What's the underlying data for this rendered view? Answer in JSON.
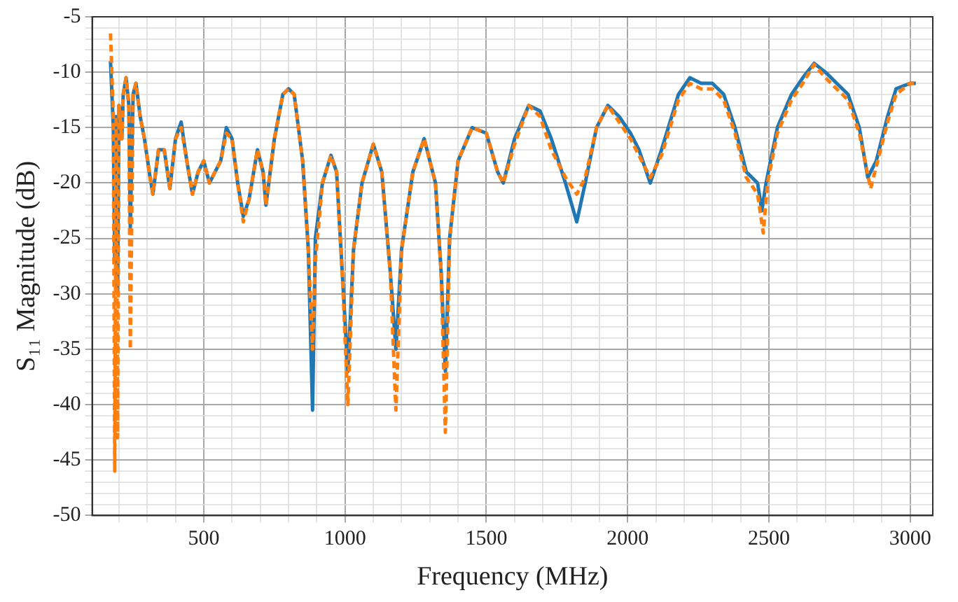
{
  "chart_data": {
    "type": "line",
    "xlabel": "Frequency (MHz)",
    "ylabel": "S₁₁ Magnitude (dB)",
    "xlim": [
      105,
      3080
    ],
    "ylim": [
      -50,
      -5
    ],
    "xticks": [
      {
        "value": 200,
        "label": null
      },
      {
        "value": 300,
        "label": null
      },
      {
        "value": 400,
        "label": null
      },
      500,
      {
        "value": 600,
        "label": null
      },
      {
        "value": 700,
        "label": null
      },
      {
        "value": 800,
        "label": null
      },
      {
        "value": 900,
        "label": null
      },
      1000,
      {
        "value": 1100,
        "label": null
      },
      {
        "value": 1200,
        "label": null
      },
      {
        "value": 1300,
        "label": null
      },
      {
        "value": 1400,
        "label": null
      },
      1500,
      {
        "value": 1600,
        "label": null
      },
      {
        "value": 1700,
        "label": null
      },
      {
        "value": 1800,
        "label": null
      },
      {
        "value": 1900,
        "label": null
      },
      2000,
      {
        "value": 2100,
        "label": null
      },
      {
        "value": 2200,
        "label": null
      },
      {
        "value": 2300,
        "label": null
      },
      {
        "value": 2400,
        "label": null
      },
      2500,
      {
        "value": 2600,
        "label": null
      },
      {
        "value": 2700,
        "label": null
      },
      {
        "value": 2800,
        "label": null
      },
      {
        "value": 2900,
        "label": null
      },
      3000
    ],
    "yticks": [
      -50,
      {
        "value": -49,
        "label": null
      },
      {
        "value": -48,
        "label": null
      },
      {
        "value": -47,
        "label": null
      },
      {
        "value": -46,
        "label": null
      },
      -45,
      {
        "value": -44,
        "label": null
      },
      {
        "value": -43,
        "label": null
      },
      {
        "value": -42,
        "label": null
      },
      {
        "value": -41,
        "label": null
      },
      -40,
      {
        "value": -39,
        "label": null
      },
      {
        "value": -38,
        "label": null
      },
      {
        "value": -37,
        "label": null
      },
      {
        "value": -36,
        "label": null
      },
      -35,
      {
        "value": -34,
        "label": null
      },
      {
        "value": -33,
        "label": null
      },
      {
        "value": -32,
        "label": null
      },
      {
        "value": -31,
        "label": null
      },
      -30,
      {
        "value": -29,
        "label": null
      },
      {
        "value": -28,
        "label": null
      },
      {
        "value": -27,
        "label": null
      },
      {
        "value": -26,
        "label": null
      },
      -25,
      {
        "value": -24,
        "label": null
      },
      {
        "value": -23,
        "label": null
      },
      {
        "value": -22,
        "label": null
      },
      {
        "value": -21,
        "label": null
      },
      -20,
      {
        "value": -19,
        "label": null
      },
      {
        "value": -18,
        "label": null
      },
      {
        "value": -17,
        "label": null
      },
      {
        "value": -16,
        "label": null
      },
      -15,
      {
        "value": -14,
        "label": null
      },
      {
        "value": -13,
        "label": null
      },
      {
        "value": -12,
        "label": null
      },
      {
        "value": -11,
        "label": null
      },
      -10,
      {
        "value": -9,
        "label": null
      },
      {
        "value": -8,
        "label": null
      },
      {
        "value": -7,
        "label": null
      },
      {
        "value": -6,
        "label": null
      },
      -5
    ],
    "grid": true,
    "marker": "none",
    "series": [
      {
        "color": "#1f77b4",
        "line_style": "solid",
        "x": [
          170,
          180,
          185,
          190,
          195,
          200,
          210,
          215,
          225,
          235,
          240,
          250,
          260,
          275,
          290,
          310,
          320,
          340,
          360,
          380,
          400,
          420,
          440,
          460,
          480,
          500,
          520,
          540,
          560,
          580,
          600,
          620,
          640,
          660,
          690,
          710,
          720,
          750,
          780,
          800,
          820,
          850,
          870,
          885,
          895,
          920,
          950,
          970,
          990,
          1010,
          1030,
          1060,
          1100,
          1130,
          1160,
          1180,
          1200,
          1240,
          1280,
          1320,
          1340,
          1355,
          1370,
          1400,
          1450,
          1500,
          1540,
          1560,
          1600,
          1650,
          1690,
          1730,
          1780,
          1820,
          1850,
          1890,
          1930,
          1970,
          2010,
          2040,
          2080,
          2120,
          2180,
          2220,
          2260,
          2300,
          2340,
          2380,
          2420,
          2460,
          2475,
          2490,
          2530,
          2580,
          2620,
          2660,
          2700,
          2740,
          2780,
          2820,
          2850,
          2880,
          2920,
          2950,
          3000,
          3020
        ],
        "values": [
          -9,
          -15,
          -27,
          -14,
          -30,
          -13,
          -16,
          -12,
          -10.5,
          -13,
          -24,
          -12,
          -11,
          -14,
          -16,
          -19.5,
          -21,
          -17,
          -17,
          -20.5,
          -16,
          -14.5,
          -18,
          -21,
          -19,
          -18,
          -20,
          -19,
          -18,
          -15,
          -16,
          -20,
          -23,
          -21.5,
          -17,
          -19,
          -22,
          -16,
          -12,
          -11.5,
          -12,
          -18,
          -26,
          -40.5,
          -25,
          -20,
          -17.5,
          -19,
          -28,
          -37,
          -26,
          -20,
          -16.5,
          -19,
          -28,
          -35,
          -26,
          -19,
          -16,
          -20,
          -28,
          -37,
          -25,
          -18,
          -15,
          -15.5,
          -19,
          -20,
          -16,
          -13,
          -13.5,
          -16,
          -20,
          -23.5,
          -20,
          -15,
          -13,
          -14,
          -15.5,
          -17,
          -20,
          -17,
          -12,
          -10.5,
          -11,
          -11,
          -12,
          -15,
          -19,
          -20,
          -22.5,
          -20,
          -15,
          -12,
          -10.5,
          -9.2,
          -10,
          -11,
          -12,
          -15,
          -19.5,
          -18,
          -14,
          -11.5,
          -11,
          -11
        ]
      },
      {
        "color": "#ff7f0e",
        "line_style": "dashed",
        "x": [
          170,
          180,
          185,
          190,
          195,
          200,
          210,
          215,
          225,
          235,
          240,
          250,
          260,
          275,
          290,
          310,
          320,
          340,
          360,
          380,
          400,
          420,
          440,
          460,
          480,
          500,
          520,
          540,
          560,
          580,
          600,
          620,
          640,
          660,
          690,
          710,
          720,
          750,
          780,
          800,
          820,
          850,
          870,
          885,
          895,
          920,
          950,
          970,
          990,
          1010,
          1030,
          1060,
          1100,
          1130,
          1160,
          1180,
          1200,
          1240,
          1280,
          1320,
          1340,
          1355,
          1370,
          1400,
          1450,
          1500,
          1540,
          1560,
          1600,
          1650,
          1690,
          1730,
          1780,
          1820,
          1850,
          1890,
          1930,
          1970,
          2010,
          2040,
          2080,
          2120,
          2180,
          2220,
          2260,
          2300,
          2340,
          2380,
          2420,
          2460,
          2480,
          2495,
          2530,
          2580,
          2620,
          2660,
          2700,
          2740,
          2780,
          2820,
          2860,
          2880,
          2920,
          2950,
          3000,
          3020
        ],
        "values": [
          -6.5,
          -14,
          -46,
          -14,
          -43,
          -13,
          -16,
          -12,
          -10.5,
          -13,
          -35,
          -12,
          -11,
          -14,
          -16,
          -19.5,
          -21,
          -17,
          -17,
          -20.5,
          -16,
          -15,
          -18,
          -21,
          -19,
          -18,
          -20,
          -19,
          -18,
          -15.5,
          -16,
          -20,
          -23.5,
          -21.5,
          -17,
          -19,
          -22,
          -16,
          -12,
          -11.5,
          -12,
          -18,
          -26,
          -35,
          -27,
          -20,
          -17.5,
          -19,
          -28,
          -40,
          -26,
          -20,
          -16.5,
          -19,
          -28,
          -40.5,
          -26,
          -19,
          -16,
          -20,
          -28,
          -42.5,
          -25,
          -18,
          -15,
          -15.5,
          -19,
          -20,
          -16.5,
          -13,
          -14,
          -17,
          -19.5,
          -21,
          -19.5,
          -15,
          -13,
          -14.5,
          -16,
          -17.5,
          -19.5,
          -17.5,
          -12.5,
          -11,
          -11.5,
          -11.5,
          -12.5,
          -15.5,
          -19.5,
          -21,
          -24.5,
          -20,
          -15.5,
          -12.5,
          -11,
          -9.3,
          -10.5,
          -11.5,
          -12.5,
          -15.5,
          -20.5,
          -18.5,
          -14.5,
          -12,
          -11,
          -11
        ]
      }
    ]
  }
}
